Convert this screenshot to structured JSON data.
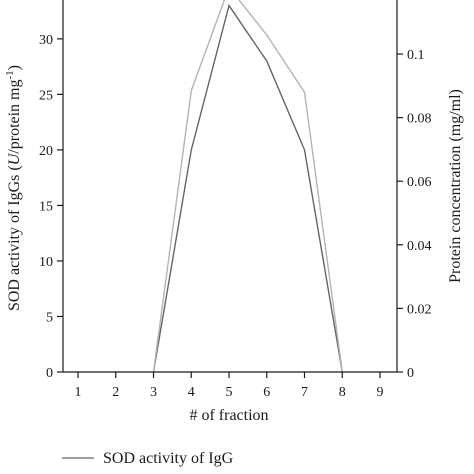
{
  "chart_data": {
    "type": "line",
    "xlabel": "# of fraction",
    "ylabel_left_parts": [
      "SOD activity of IgGs (",
      "U",
      "/protein mg",
      "-1",
      ")"
    ],
    "ylabel_right": "Protein concentration (mg/ml)",
    "x": [
      1,
      2,
      3,
      4,
      5,
      6,
      7,
      8,
      9
    ],
    "x_ticks": [
      "1",
      "2",
      "3",
      "4",
      "5",
      "6",
      "7",
      "8",
      "9"
    ],
    "ylim_left": [
      0,
      33.5
    ],
    "y_ticks_left": [
      "0",
      "5",
      "10",
      "15",
      "20",
      "25",
      "30"
    ],
    "ylim_right": [
      0,
      0.117
    ],
    "y_ticks_right": [
      "0",
      "0.02",
      "0.04",
      "0.06",
      "0.08",
      "0.1"
    ],
    "series": [
      {
        "name": "SOD activity of IgG",
        "axis": "left",
        "color": "#5f6670",
        "x": [
          3,
          4,
          5,
          6,
          7,
          8
        ],
        "values": [
          0,
          20,
          33,
          28,
          20,
          0
        ]
      },
      {
        "axis": "right",
        "color": "#b4b4b4",
        "x": [
          3,
          4,
          5,
          6,
          7,
          8
        ],
        "values": [
          0,
          0.0885,
          0.121,
          0.106,
          0.088,
          0
        ]
      }
    ],
    "legend": {
      "placement": "bottom-left",
      "entries": [
        "SOD activity of IgG"
      ]
    }
  }
}
